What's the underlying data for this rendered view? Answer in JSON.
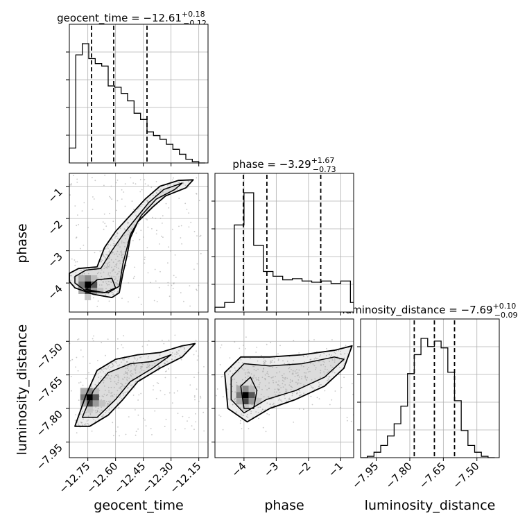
{
  "chart_data": {
    "type": "corner",
    "parameters": [
      "geocent_time",
      "phase",
      "luminosity_distance"
    ],
    "titles": [
      {
        "param": "geocent_time",
        "prefix": "geocent_time = ",
        "median": "−12.61",
        "plus": "+0.18",
        "minus": "−0.12"
      },
      {
        "param": "phase",
        "prefix": "phase = ",
        "median": "−3.29",
        "plus": "+1.67",
        "minus": "−0.73"
      },
      {
        "param": "luminosity_distance",
        "prefix": "luminosity_distance = ",
        "median": "−7.69",
        "plus": "+0.10",
        "minus": "−0.09"
      }
    ],
    "axes": {
      "geocent_time": {
        "range": [
          -12.85,
          -12.1
        ],
        "ticks": [
          -12.75,
          -12.6,
          -12.45,
          -12.3,
          -12.15
        ],
        "tick_labels": [
          "−12.75",
          "−12.60",
          "−12.45",
          "−12.30",
          "−12.15"
        ]
      },
      "phase": {
        "range": [
          -4.9,
          -0.6
        ],
        "ticks": [
          -4,
          -3,
          -2,
          -1
        ],
        "tick_labels": [
          "−4",
          "−3",
          "−2",
          "−1"
        ]
      },
      "luminosity_distance": {
        "range": [
          -8.02,
          -7.4
        ],
        "ticks": [
          -7.95,
          -7.8,
          -7.65,
          -7.5
        ],
        "tick_labels": [
          "−7.95",
          "−7.80",
          "−7.65",
          "−7.50"
        ]
      }
    },
    "histograms": {
      "geocent_time": {
        "bin_edges": [
          -12.85,
          -12.815,
          -12.78,
          -12.745,
          -12.71,
          -12.675,
          -12.64,
          -12.605,
          -12.57,
          -12.535,
          -12.5,
          -12.465,
          -12.43,
          -12.395,
          -12.36,
          -12.325,
          -12.29,
          -12.255,
          -12.22,
          -12.185,
          -12.15,
          -12.115
        ],
        "counts": [
          0.12,
          0.87,
          0.96,
          0.84,
          0.8,
          0.78,
          0.62,
          0.61,
          0.56,
          0.5,
          0.4,
          0.35,
          0.25,
          0.22,
          0.19,
          0.15,
          0.11,
          0.07,
          0.03,
          0.01,
          0.0
        ],
        "quantiles": [
          -12.73,
          -12.61,
          -12.43
        ]
      },
      "phase": {
        "bin_edges": [
          -4.9,
          -4.6,
          -4.3,
          -4.0,
          -3.7,
          -3.4,
          -3.1,
          -2.8,
          -2.5,
          -2.2,
          -1.9,
          -1.6,
          -1.3,
          -1.0,
          -0.7,
          -0.6
        ],
        "counts": [
          0.04,
          0.08,
          0.73,
          1.0,
          0.56,
          0.34,
          0.3,
          0.27,
          0.28,
          0.26,
          0.25,
          0.26,
          0.24,
          0.26,
          0.08
        ],
        "quantiles": [
          -4.02,
          -3.29,
          -1.62
        ]
      },
      "luminosity_distance": {
        "bin_edges": [
          -8.02,
          -7.99,
          -7.96,
          -7.93,
          -7.9,
          -7.87,
          -7.84,
          -7.81,
          -7.78,
          -7.75,
          -7.72,
          -7.69,
          -7.66,
          -7.63,
          -7.6,
          -7.57,
          -7.54,
          -7.51,
          -7.48,
          -7.45,
          -7.42
        ],
        "counts": [
          0.0,
          0.01,
          0.04,
          0.09,
          0.16,
          0.25,
          0.38,
          0.62,
          0.76,
          0.88,
          0.82,
          0.86,
          0.81,
          0.63,
          0.42,
          0.2,
          0.09,
          0.04,
          0.01,
          0.0
        ],
        "quantiles": [
          -7.78,
          -7.69,
          -7.6
        ]
      }
    },
    "joint_densities": [
      {
        "x": "geocent_time",
        "y": "phase",
        "contours": [
          [
            [
              -12.85,
              -3.7
            ],
            [
              -12.8,
              -3.55
            ],
            [
              -12.7,
              -3.5
            ],
            [
              -12.66,
              -2.9
            ],
            [
              -12.6,
              -2.4
            ],
            [
              -12.52,
              -1.9
            ],
            [
              -12.44,
              -1.4
            ],
            [
              -12.36,
              -1.0
            ],
            [
              -12.26,
              -0.82
            ],
            [
              -12.18,
              -0.8
            ],
            [
              -12.22,
              -1.05
            ],
            [
              -12.33,
              -1.3
            ],
            [
              -12.4,
              -1.65
            ],
            [
              -12.48,
              -2.1
            ],
            [
              -12.52,
              -2.6
            ],
            [
              -12.54,
              -3.2
            ],
            [
              -12.56,
              -3.7
            ],
            [
              -12.58,
              -4.3
            ],
            [
              -12.62,
              -4.45
            ],
            [
              -12.72,
              -4.35
            ],
            [
              -12.82,
              -4.15
            ],
            [
              -12.85,
              -3.95
            ]
          ],
          [
            [
              -12.82,
              -3.8
            ],
            [
              -12.76,
              -3.6
            ],
            [
              -12.68,
              -3.55
            ],
            [
              -12.62,
              -3.0
            ],
            [
              -12.56,
              -2.5
            ],
            [
              -12.49,
              -2.0
            ],
            [
              -12.42,
              -1.5
            ],
            [
              -12.34,
              -1.1
            ],
            [
              -12.24,
              -0.9
            ],
            [
              -12.28,
              -1.1
            ],
            [
              -12.38,
              -1.4
            ],
            [
              -12.46,
              -1.9
            ],
            [
              -12.52,
              -2.5
            ],
            [
              -12.56,
              -3.4
            ],
            [
              -12.58,
              -4.1
            ],
            [
              -12.64,
              -4.3
            ],
            [
              -12.76,
              -4.25
            ],
            [
              -12.82,
              -4.0
            ]
          ],
          [
            [
              -12.76,
              -4.2
            ],
            [
              -12.7,
              -3.9
            ],
            [
              -12.62,
              -3.85
            ],
            [
              -12.6,
              -4.15
            ],
            [
              -12.66,
              -4.3
            ]
          ]
        ],
        "density_peak": [
          -12.75,
          -4.05
        ]
      },
      {
        "x": "geocent_time",
        "y": "luminosity_distance",
        "contours": [
          [
            [
              -12.82,
              -7.88
            ],
            [
              -12.76,
              -7.74
            ],
            [
              -12.7,
              -7.63
            ],
            [
              -12.6,
              -7.58
            ],
            [
              -12.48,
              -7.56
            ],
            [
              -12.36,
              -7.55
            ],
            [
              -12.24,
              -7.52
            ],
            [
              -12.17,
              -7.51
            ],
            [
              -12.24,
              -7.57
            ],
            [
              -12.36,
              -7.62
            ],
            [
              -12.48,
              -7.68
            ],
            [
              -12.56,
              -7.76
            ],
            [
              -12.64,
              -7.83
            ],
            [
              -12.74,
              -7.88
            ]
          ],
          [
            [
              -12.78,
              -7.84
            ],
            [
              -12.72,
              -7.72
            ],
            [
              -12.64,
              -7.64
            ],
            [
              -12.52,
              -7.6
            ],
            [
              -12.4,
              -7.59
            ],
            [
              -12.3,
              -7.56
            ],
            [
              -12.4,
              -7.62
            ],
            [
              -12.52,
              -7.68
            ],
            [
              -12.6,
              -7.76
            ],
            [
              -12.7,
              -7.84
            ]
          ]
        ],
        "density_peak": [
          -12.74,
          -7.75
        ]
      },
      {
        "x": "phase",
        "y": "luminosity_distance",
        "contours": [
          [
            [
              -4.6,
              -7.64
            ],
            [
              -4.1,
              -7.57
            ],
            [
              -3.2,
              -7.57
            ],
            [
              -2.2,
              -7.56
            ],
            [
              -1.2,
              -7.54
            ],
            [
              -0.65,
              -7.52
            ],
            [
              -0.9,
              -7.62
            ],
            [
              -1.5,
              -7.7
            ],
            [
              -2.4,
              -7.76
            ],
            [
              -3.2,
              -7.8
            ],
            [
              -3.9,
              -7.86
            ],
            [
              -4.5,
              -7.8
            ]
          ],
          [
            [
              -4.4,
              -7.66
            ],
            [
              -4.0,
              -7.6
            ],
            [
              -3.2,
              -7.61
            ],
            [
              -2.2,
              -7.6
            ],
            [
              -1.2,
              -7.57
            ],
            [
              -0.9,
              -7.58
            ],
            [
              -1.5,
              -7.66
            ],
            [
              -2.4,
              -7.72
            ],
            [
              -3.3,
              -7.76
            ],
            [
              -4.0,
              -7.82
            ],
            [
              -4.4,
              -7.76
            ]
          ],
          [
            [
              -4.1,
              -7.7
            ],
            [
              -3.8,
              -7.66
            ],
            [
              -3.6,
              -7.72
            ],
            [
              -3.7,
              -7.8
            ],
            [
              -4.0,
              -7.8
            ]
          ]
        ],
        "density_peak": [
          -3.95,
          -7.74
        ]
      }
    ]
  }
}
